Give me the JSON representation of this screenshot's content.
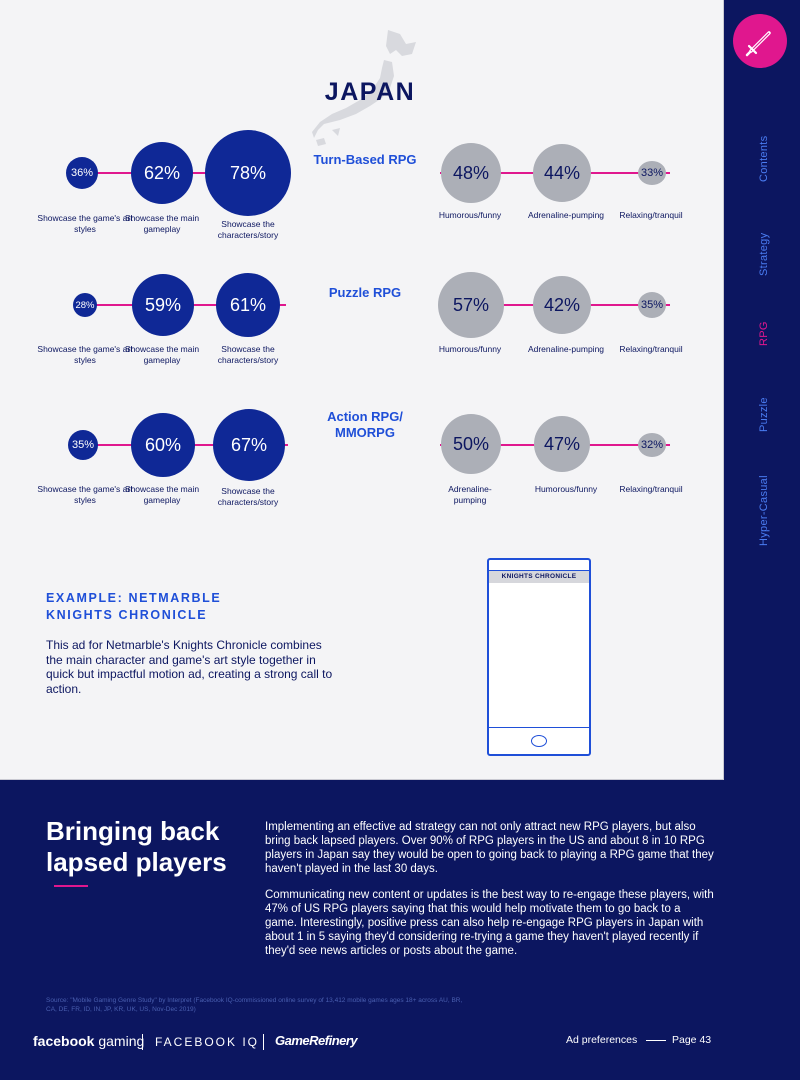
{
  "sidebar": {
    "logo_icon": "sword-icon",
    "items": [
      {
        "label": "Contents",
        "active": false
      },
      {
        "label": "Strategy",
        "active": false
      },
      {
        "label": "RPG",
        "active": true
      },
      {
        "label": "Puzzle",
        "active": false
      },
      {
        "label": "Hyper-Casual",
        "active": false
      }
    ]
  },
  "title": "JAPAN",
  "rows": [
    {
      "genre": "Turn-Based RPG",
      "left": [
        {
          "value": "36%",
          "caption": "Showcase the game's art styles"
        },
        {
          "value": "62%",
          "caption": "Showcase the main gameplay"
        },
        {
          "value": "78%",
          "caption": "Showcase the characters/story"
        }
      ],
      "right": [
        {
          "value": "48%",
          "caption": "Humorous/funny"
        },
        {
          "value": "44%",
          "caption": "Adrenaline-pumping"
        },
        {
          "value": "33%",
          "caption": "Relaxing/tranquil"
        }
      ]
    },
    {
      "genre": "Puzzle RPG",
      "left": [
        {
          "value": "28%",
          "caption": "Showcase the game's art styles"
        },
        {
          "value": "59%",
          "caption": "Showcase the main gameplay"
        },
        {
          "value": "61%",
          "caption": "Showcase the characters/story"
        }
      ],
      "right": [
        {
          "value": "57%",
          "caption": "Humorous/funny"
        },
        {
          "value": "42%",
          "caption": "Adrenaline-pumping"
        },
        {
          "value": "35%",
          "caption": "Relaxing/tranquil"
        }
      ]
    },
    {
      "genre": "Action RPG/ MMORPG",
      "left": [
        {
          "value": "35%",
          "caption": "Showcase the game's art styles"
        },
        {
          "value": "60%",
          "caption": "Showcase the main gameplay"
        },
        {
          "value": "67%",
          "caption": "Showcase the characters/story"
        }
      ],
      "right": [
        {
          "value": "50%",
          "caption": "Adrenaline- pumping"
        },
        {
          "value": "47%",
          "caption": "Humorous/funny"
        },
        {
          "value": "32%",
          "caption": "Relaxing/tranquil"
        }
      ]
    }
  ],
  "example": {
    "title": "EXAMPLE: NETMARBLE KNIGHTS CHRONICLE",
    "body": "This ad for Netmarble's Knights Chronicle combines the main character and game's art style together in quick but impactful motion ad, creating a strong call to action.",
    "phone_label": "KNIGHTS CHRONICLE"
  },
  "section": {
    "heading": "Bringing back lapsed players",
    "paragraph1": "Implementing an effective ad strategy can not only attract new RPG players, but also bring back lapsed players. Over 90% of RPG players in the US and about 8 in 10 RPG players in Japan say they would be open to going back to playing a RPG game that they haven't played in the last 30 days.",
    "paragraph2": "Communicating new content or updates is the best way to re-engage these players, with 47% of US RPG players saying that this would help motivate them to go back to a game. Interestingly, positive press can also help re-engage RPG players in Japan with about 1 in 5 saying they'd considering re-trying a game they haven't played recently if they'd see news articles or posts about the game."
  },
  "source": "Source: \"Mobile Gaming Genre Study\" by Interpret (Facebook IQ-commissioned online survey of 13,412 mobile games ages 18+ across AU, BR, CA, DE, FR, ID, IN, JP, KR, UK, US, Nov-Dec 2019)",
  "footer": {
    "brand1_bold": "facebook",
    "brand1_rest": " gaming",
    "brand2": "FACEBOOK IQ",
    "brand3": "GameRefinery",
    "section": "Ad preferences",
    "page": "Page 43"
  },
  "colors": {
    "navy": "#0c1660",
    "bubble_blue": "#0f2896",
    "bubble_grey": "#acafb7",
    "accent_pink": "#e0178e",
    "heading_blue": "#1f4fd8"
  }
}
